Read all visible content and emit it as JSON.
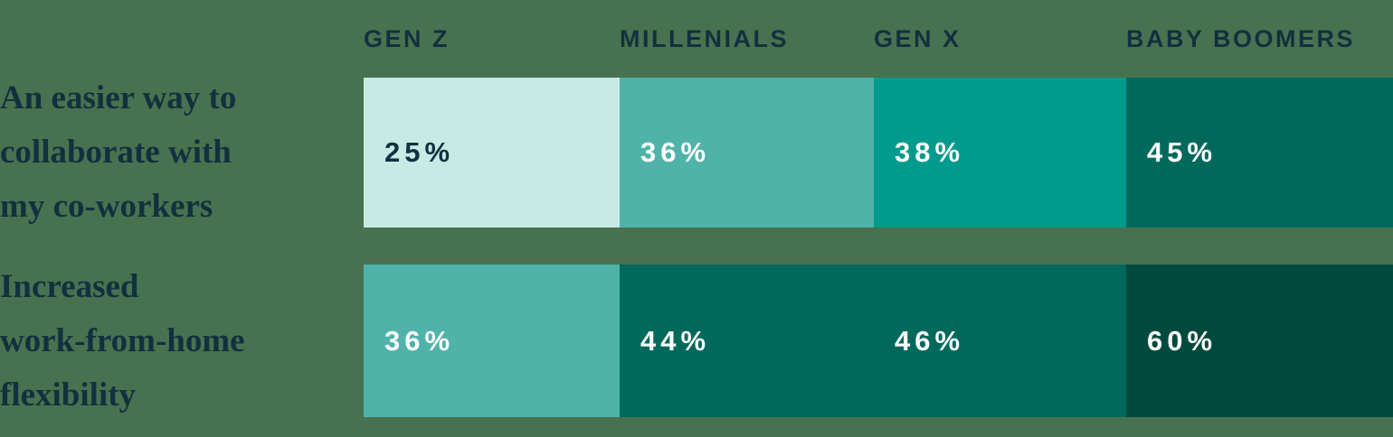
{
  "chart_data": {
    "type": "heatmap",
    "columns": [
      "GEN Z",
      "MILLENIALS",
      "GEN X",
      "BABY BOOMERS"
    ],
    "rows": [
      {
        "label": "An easier way to collaborate with my co-workers",
        "label_lines": [
          "An easier way to",
          "collaborate with",
          "my co-workers"
        ],
        "values": [
          25,
          36,
          38,
          45
        ],
        "value_labels": [
          "25%",
          "36%",
          "38%",
          "45%"
        ],
        "cell_colors": [
          "#c8eae4",
          "#4fb3aa",
          "#009b8c",
          "#00695c"
        ],
        "value_text_colors": [
          "#13303f",
          "#ffffff",
          "#ffffff",
          "#ffffff"
        ]
      },
      {
        "label": "Increased work-from-home flexibility",
        "label_lines": [
          "Increased",
          "work-from-home",
          "flexibility"
        ],
        "values": [
          36,
          44,
          46,
          60
        ],
        "value_labels": [
          "36%",
          "44%",
          "46%",
          "60%"
        ],
        "cell_colors": [
          "#4fb3aa",
          "#00695c",
          "#00695c",
          "#004a3d"
        ],
        "value_text_colors": [
          "#ffffff",
          "#ffffff",
          "#ffffff",
          "#ffffff"
        ]
      }
    ],
    "unit": "%",
    "legend": "none",
    "grid": "off"
  },
  "colors": {
    "background": "#48724f",
    "column_header_text": "#13303f",
    "row_label_text": "#13303f"
  }
}
